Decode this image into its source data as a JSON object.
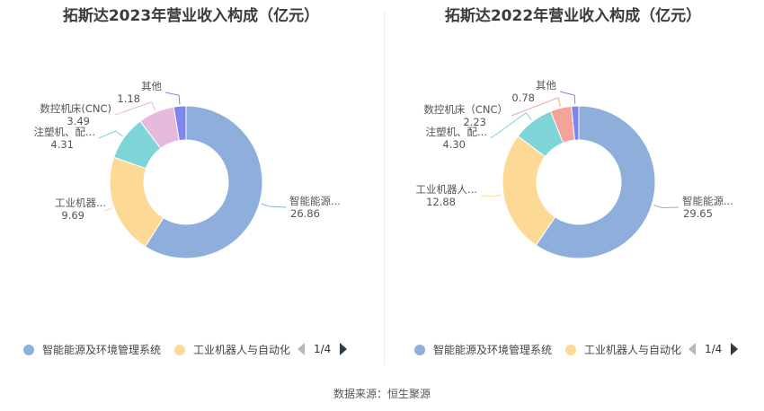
{
  "chart_data": [
    {
      "type": "pie",
      "title": "拓斯达2023年营业收入构成（亿元）",
      "series": [
        {
          "name": "智能能源及环境管理系统",
          "label": "智能能源...",
          "value": 26.86,
          "value_text": "26.86",
          "color": "#8eaedc"
        },
        {
          "name": "工业机器人与自动化",
          "label": "工业机器...",
          "value": 9.69,
          "value_text": "9.69",
          "color": "#fcd994"
        },
        {
          "name": "注塑机、配...",
          "label": "注塑机、配...",
          "value": 4.31,
          "value_text": "4.31",
          "color": "#7fd4d8"
        },
        {
          "name": "数控机床(CNC)",
          "label": "数控机床(CNC)",
          "value": 3.49,
          "value_text": "3.49",
          "color": "#e7b9dc"
        },
        {
          "name": "其他",
          "label": "其他",
          "value": 1.18,
          "value_text": "1.18",
          "color": "#7c86ec"
        }
      ],
      "legend": {
        "items": [
          "智能能源及环境管理系统",
          "工业机器人与自动化"
        ],
        "page": "1/4",
        "position": "bottom"
      }
    },
    {
      "type": "pie",
      "title": "拓斯达2022年营业收入构成（亿元）",
      "series": [
        {
          "name": "智能能源及环境管理系统",
          "label": "智能能源...",
          "value": 29.65,
          "value_text": "29.65",
          "color": "#8eaedc"
        },
        {
          "name": "工业机器人与自动化",
          "label": "工业机器人...",
          "value": 12.88,
          "value_text": "12.88",
          "color": "#fcd994"
        },
        {
          "name": "注塑机、配...",
          "label": "注塑机、配...",
          "value": 4.3,
          "value_text": "4.30",
          "color": "#7fd4d8"
        },
        {
          "name": "数控机床（CNC）",
          "label": "数控机床（CNC）",
          "value": 2.23,
          "value_text": "2.23",
          "color": "#f4a39a"
        },
        {
          "name": "其他",
          "label": "其他",
          "value": 0.78,
          "value_text": "0.78",
          "color": "#7c86ec"
        }
      ],
      "legend": {
        "items": [
          "智能能源及环境管理系统",
          "工业机器人与自动化"
        ],
        "page": "1/4",
        "position": "bottom"
      }
    }
  ],
  "source": "数据来源：恒生聚源"
}
